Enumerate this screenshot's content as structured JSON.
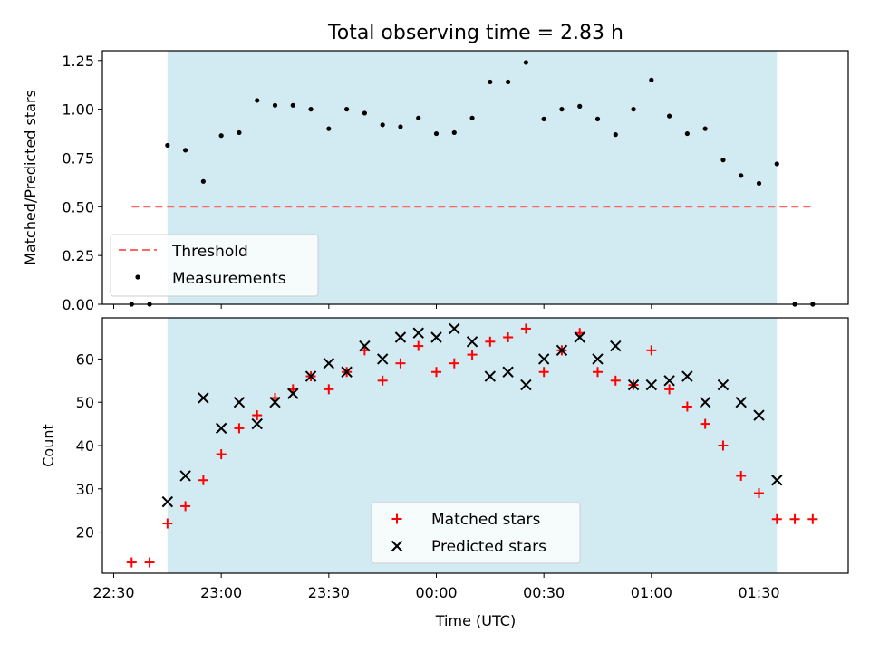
{
  "title": "Total observing time = 2.83 h",
  "colors": {
    "shade": "#add8e6",
    "threshold": "#ff6666",
    "measurement": "#000000",
    "matched": "#ff0000",
    "predicted": "#000000"
  },
  "chart_data": [
    {
      "type": "scatter",
      "ylabel": "Matched/Predicted stars",
      "ylim": [
        0,
        1.3
      ],
      "yticks": [
        0.0,
        0.25,
        0.5,
        0.75,
        1.0,
        1.25
      ],
      "ytick_labels": [
        "0.00",
        "0.25",
        "0.50",
        "0.75",
        "1.00",
        "1.25"
      ],
      "shaded_span": [
        "22:45",
        "01:35"
      ],
      "threshold": {
        "name": "Threshold",
        "value": 0.5,
        "x_range": [
          "22:35",
          "01:45"
        ]
      },
      "series": [
        {
          "name": "Measurements",
          "x": [
            "22:35",
            "22:40",
            "22:45",
            "22:50",
            "22:55",
            "23:00",
            "23:05",
            "23:10",
            "23:15",
            "23:20",
            "23:25",
            "23:30",
            "23:35",
            "23:40",
            "23:45",
            "23:50",
            "23:55",
            "00:00",
            "00:05",
            "00:10",
            "00:15",
            "00:20",
            "00:25",
            "00:30",
            "00:35",
            "00:40",
            "00:45",
            "00:50",
            "00:55",
            "01:00",
            "01:05",
            "01:10",
            "01:15",
            "01:20",
            "01:25",
            "01:30",
            "01:35",
            "01:40",
            "01:45"
          ],
          "y": [
            0.0,
            0.0,
            0.815,
            0.79,
            0.63,
            0.865,
            0.88,
            1.045,
            1.02,
            1.02,
            1.0,
            0.9,
            1.0,
            0.98,
            0.92,
            0.91,
            0.955,
            0.875,
            0.88,
            0.955,
            1.14,
            1.14,
            1.24,
            0.95,
            1.0,
            1.015,
            0.95,
            0.87,
            1.0,
            1.15,
            0.965,
            0.875,
            0.9,
            0.74,
            0.66,
            0.62,
            0.72,
            0.0,
            0.0
          ]
        }
      ],
      "legend": {
        "position": "lower left",
        "entries": [
          "Threshold",
          "Measurements"
        ]
      }
    },
    {
      "type": "scatter",
      "xlabel": "Time (UTC)",
      "ylabel": "Count",
      "ylim": [
        10.5,
        69.5
      ],
      "yticks": [
        20,
        30,
        40,
        50,
        60
      ],
      "ytick_labels": [
        "20",
        "30",
        "40",
        "50",
        "60"
      ],
      "xlim": [
        "22:30",
        "01:50"
      ],
      "xticks": [
        "22:30",
        "23:00",
        "23:30",
        "00:00",
        "00:30",
        "01:00",
        "01:30"
      ],
      "xtick_labels": [
        "22:30",
        "23:00",
        "23:30",
        "00:00",
        "00:30",
        "01:00",
        "01:30"
      ],
      "shaded_span": [
        "22:45",
        "01:35"
      ],
      "series": [
        {
          "name": "Matched stars",
          "x": [
            "22:35",
            "22:40",
            "22:45",
            "22:50",
            "22:55",
            "23:00",
            "23:05",
            "23:10",
            "23:15",
            "23:20",
            "23:25",
            "23:30",
            "23:35",
            "23:40",
            "23:45",
            "23:50",
            "23:55",
            "00:00",
            "00:05",
            "00:10",
            "00:15",
            "00:20",
            "00:25",
            "00:30",
            "00:35",
            "00:40",
            "00:45",
            "00:50",
            "00:55",
            "01:00",
            "01:05",
            "01:10",
            "01:15",
            "01:20",
            "01:25",
            "01:30",
            "01:35",
            "01:40",
            "01:45"
          ],
          "y": [
            13,
            13,
            22,
            26,
            32,
            38,
            44,
            47,
            51,
            53,
            56,
            53,
            57,
            62,
            55,
            59,
            63,
            57,
            59,
            61,
            64,
            65,
            67,
            57,
            62,
            66,
            57,
            55,
            54,
            62,
            53,
            49,
            45,
            40,
            33,
            29,
            23,
            23,
            23
          ]
        },
        {
          "name": "Predicted stars",
          "x": [
            "22:45",
            "22:50",
            "22:55",
            "23:00",
            "23:05",
            "23:10",
            "23:15",
            "23:20",
            "23:25",
            "23:30",
            "23:35",
            "23:40",
            "23:45",
            "23:50",
            "23:55",
            "00:00",
            "00:05",
            "00:10",
            "00:15",
            "00:20",
            "00:25",
            "00:30",
            "00:35",
            "00:40",
            "00:45",
            "00:50",
            "00:55",
            "01:00",
            "01:05",
            "01:10",
            "01:15",
            "01:20",
            "01:25",
            "01:30",
            "01:35"
          ],
          "y": [
            27,
            33,
            51,
            44,
            50,
            45,
            50,
            52,
            56,
            59,
            57,
            63,
            60,
            65,
            66,
            65,
            67,
            64,
            56,
            57,
            54,
            60,
            62,
            65,
            60,
            63,
            54,
            54,
            55,
            56,
            50,
            54,
            50,
            47,
            32
          ]
        }
      ],
      "legend": {
        "position": "lower center",
        "entries": [
          "Matched stars",
          "Predicted stars"
        ]
      }
    }
  ]
}
